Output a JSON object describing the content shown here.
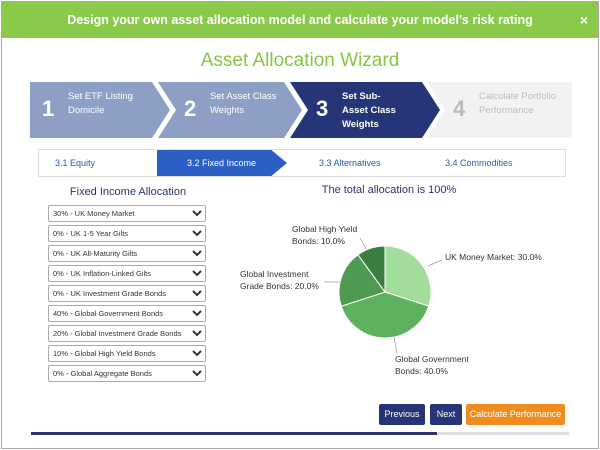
{
  "banner": {
    "text": "Design your own asset allocation model and calculate your model's risk rating",
    "close": "×"
  },
  "title": "Asset Allocation Wizard",
  "steps": [
    {
      "number": "1",
      "label": "Set ETF Listing Domicile"
    },
    {
      "number": "2",
      "label": "Set Asset Class Weights"
    },
    {
      "number": "3",
      "label": "Set Sub-Asset Class Weights"
    },
    {
      "number": "4",
      "label": "Calculate Portfolio Performance"
    }
  ],
  "tabs": [
    "3.1  Equity",
    "3.2  Fixed Income",
    "3.3  Alternatives",
    "3.4  Commodities"
  ],
  "allocation": {
    "heading": "Fixed Income Allocation",
    "options": [
      "30% - UK Money Market",
      "0% - UK 1-5 Year Gilts",
      "0% - UK All-Maturity Gilts",
      "0% - UK Inflation-Linked Gilts",
      "0% - UK Investment Grade Bonds",
      "40% - Global Government Bonds",
      "20% - Global Investment Grade Bonds",
      "10% - Global High Yield Bonds",
      "0% - Global Aggregate Bonds"
    ]
  },
  "chart_data": {
    "type": "pie",
    "title": "The total allocation is 100%",
    "slices": [
      {
        "label": [
          "UK Money Market: 30.0%"
        ],
        "value": 30,
        "color": "#a3dd9c"
      },
      {
        "label": [
          "Global Government",
          "Bonds: 40.0%"
        ],
        "value": 40,
        "color": "#5fb160"
      },
      {
        "label": [
          "Global Investment",
          "Grade Bonds: 20.0%"
        ],
        "value": 20,
        "color": "#4f9a51"
      },
      {
        "label": [
          "Global High Yield",
          "Bonds: 10.0%"
        ],
        "value": 10,
        "color": "#3c7d41"
      }
    ]
  },
  "buttons": [
    "Previous",
    "Next",
    "Calculate Performance"
  ]
}
